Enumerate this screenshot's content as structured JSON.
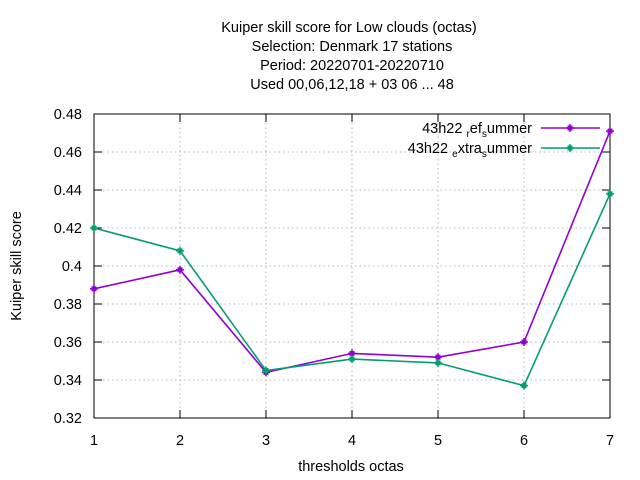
{
  "chart_data": {
    "type": "line",
    "title_lines": [
      "Kuiper skill score  for Low clouds (octas)",
      "Selection: Denmark     17 stations",
      "Period: 20220701-20220710",
      "Used  00,06,12,18  + 03 06 ... 48"
    ],
    "xlabel": "thresholds octas",
    "ylabel": "Kuiper skill score",
    "x": [
      1,
      2,
      3,
      4,
      5,
      6,
      7
    ],
    "xlim": [
      1,
      7
    ],
    "ylim": [
      0.32,
      0.48
    ],
    "xticks": [
      "1",
      "2",
      "3",
      "4",
      "5",
      "6",
      "7"
    ],
    "yticks": [
      "0.32",
      "0.34",
      "0.36",
      "0.38",
      "0.4",
      "0.42",
      "0.44",
      "0.46",
      "0.48"
    ],
    "grid": true,
    "legend_position": "top-right",
    "series": [
      {
        "name_parts": {
          "base": "43h22 ",
          "sub1": "r",
          "mid": "ef",
          "sub2": "s",
          "end": "ummer"
        },
        "color": "#9400d3",
        "values": [
          0.388,
          0.398,
          0.344,
          0.354,
          0.352,
          0.36,
          0.471
        ]
      },
      {
        "name_parts": {
          "base": "43h22 ",
          "sub1": "e",
          "mid": "xtra",
          "sub2": "s",
          "end": "ummer"
        },
        "color": "#009e73",
        "values": [
          0.42,
          0.408,
          0.345,
          0.351,
          0.349,
          0.337,
          0.438
        ]
      }
    ]
  }
}
